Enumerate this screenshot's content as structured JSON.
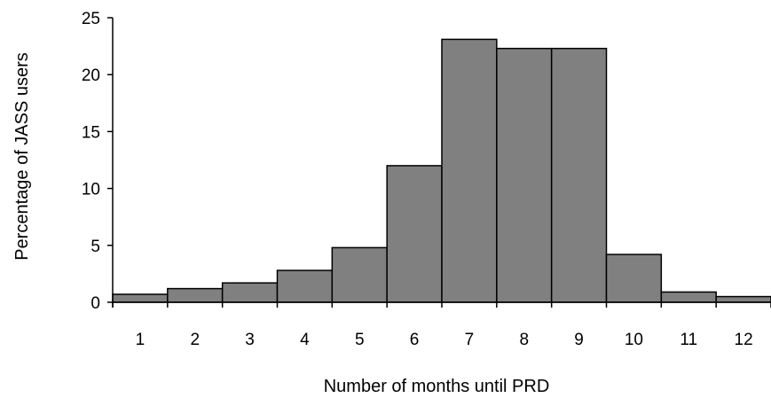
{
  "chart_data": {
    "type": "bar",
    "title": "",
    "xlabel": "Number of months until PRD",
    "ylabel": "Percentage of JASS users",
    "categories": [
      "1",
      "2",
      "3",
      "4",
      "5",
      "6",
      "7",
      "8",
      "9",
      "10",
      "11",
      "12"
    ],
    "series": [
      {
        "values": [
          0.7,
          1.2,
          1.7,
          2.8,
          4.8,
          12.0,
          23.1,
          22.3,
          22.3,
          4.2,
          0.9,
          0.5
        ]
      }
    ],
    "ylim": [
      0,
      25
    ],
    "yticks": [
      "0",
      "5",
      "10",
      "15",
      "20",
      "25"
    ],
    "grid": false,
    "bar_color": "#808080",
    "bar_edge_color": "#000000"
  }
}
